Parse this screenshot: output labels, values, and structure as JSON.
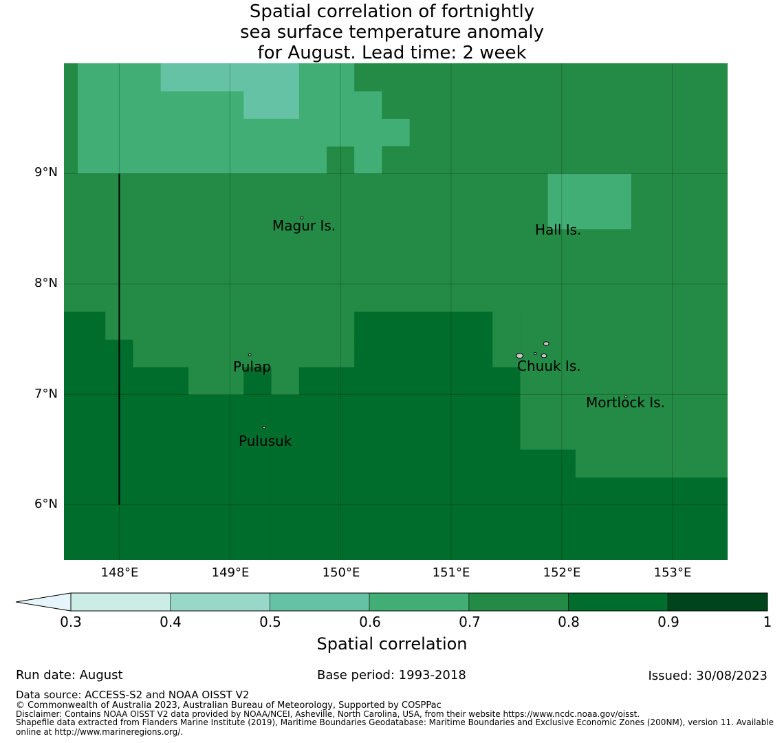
{
  "title": {
    "lines": [
      "Spatial correlation of fortnightly",
      "sea surface temperature anomaly",
      "for August. Lead time: 2 week"
    ]
  },
  "map": {
    "lon_range": [
      147.5,
      153.5
    ],
    "lat_range": [
      5.5,
      10.0
    ],
    "lon_ticks": [
      148,
      149,
      150,
      151,
      152,
      153
    ],
    "lat_ticks": [
      6,
      7,
      8,
      9
    ],
    "lon_tick_labels": [
      "148°E",
      "149°E",
      "150°E",
      "151°E",
      "152°E",
      "153°E"
    ],
    "lat_tick_labels": [
      "6°N",
      "7°N",
      "8°N",
      "9°N"
    ],
    "grid_cell_deg": 0.25,
    "places": [
      {
        "name": "Magur Is.",
        "lon": 149.65,
        "lat": 8.6
      },
      {
        "name": "Hall Is.",
        "lon": 151.98,
        "lat": 8.52
      },
      {
        "name": "Pulap",
        "lon": 149.2,
        "lat": 7.35
      },
      {
        "name": "Chuuk Is.",
        "lon": 151.85,
        "lat": 7.4
      },
      {
        "name": "Mortlock Is.",
        "lon": 152.6,
        "lat": 7.0
      },
      {
        "name": "Pulusuk",
        "lon": 149.3,
        "lat": 6.68
      }
    ],
    "cells": [
      {
        "lon": [
          147.5,
          147.625
        ],
        "lat": [
          9.0,
          10.0
        ],
        "value": 0.75
      },
      {
        "lon": [
          147.625,
          148.375
        ],
        "lat": [
          9.0,
          10.0
        ],
        "value": 0.65
      },
      {
        "lon": [
          148.375,
          149.125
        ],
        "lat": [
          9.0,
          9.75
        ],
        "value": 0.65
      },
      {
        "lon": [
          148.375,
          149.125
        ],
        "lat": [
          9.75,
          10.0
        ],
        "value": 0.55
      },
      {
        "lon": [
          149.125,
          149.625
        ],
        "lat": [
          9.0,
          9.5
        ],
        "value": 0.65
      },
      {
        "lon": [
          149.125,
          149.625
        ],
        "lat": [
          9.5,
          10.0
        ],
        "value": 0.55
      },
      {
        "lon": [
          149.625,
          149.875
        ],
        "lat": [
          9.0,
          10.0
        ],
        "value": 0.65
      },
      {
        "lon": [
          149.875,
          150.125
        ],
        "lat": [
          9.0,
          9.25
        ],
        "value": 0.75
      },
      {
        "lon": [
          149.875,
          150.125
        ],
        "lat": [
          9.25,
          10.0
        ],
        "value": 0.65
      },
      {
        "lon": [
          150.125,
          150.375
        ],
        "lat": [
          9.0,
          9.75
        ],
        "value": 0.65
      },
      {
        "lon": [
          150.375,
          150.625
        ],
        "lat": [
          9.25,
          9.5
        ],
        "value": 0.65
      },
      {
        "lon": [
          150.625,
          150.875
        ],
        "lat": [
          9.0,
          9.75
        ],
        "value": 0.75
      },
      {
        "lon": [
          150.875,
          153.5
        ],
        "lat": [
          9.0,
          10.0
        ],
        "value": 0.75
      },
      {
        "lon": [
          150.125,
          150.875
        ],
        "lat": [
          9.75,
          10.0
        ],
        "value": 0.75
      },
      {
        "lon": [
          150.375,
          150.625
        ],
        "lat": [
          9.0,
          9.25
        ],
        "value": 0.75
      },
      {
        "lon": [
          150.375,
          150.625
        ],
        "lat": [
          9.5,
          9.75
        ],
        "value": 0.75
      },
      {
        "lon": [
          147.5,
          153.5
        ],
        "lat": [
          7.75,
          9.0
        ],
        "value": 0.75
      },
      {
        "lon": [
          151.875,
          152.625
        ],
        "lat": [
          8.5,
          9.0
        ],
        "value": 0.65
      },
      {
        "lon": [
          147.5,
          147.875
        ],
        "lat": [
          5.5,
          7.75
        ],
        "value": 0.85
      },
      {
        "lon": [
          147.875,
          148.125
        ],
        "lat": [
          5.5,
          7.5
        ],
        "value": 0.85
      },
      {
        "lon": [
          147.875,
          148.125
        ],
        "lat": [
          7.5,
          7.75
        ],
        "value": 0.75
      },
      {
        "lon": [
          148.125,
          148.625
        ],
        "lat": [
          5.5,
          7.25
        ],
        "value": 0.85
      },
      {
        "lon": [
          148.125,
          148.625
        ],
        "lat": [
          7.25,
          7.75
        ],
        "value": 0.75
      },
      {
        "lon": [
          148.625,
          149.125
        ],
        "lat": [
          5.5,
          7.0
        ],
        "value": 0.85
      },
      {
        "lon": [
          148.625,
          149.125
        ],
        "lat": [
          7.0,
          7.75
        ],
        "value": 0.75
      },
      {
        "lon": [
          149.125,
          149.375
        ],
        "lat": [
          5.5,
          7.25
        ],
        "value": 0.85
      },
      {
        "lon": [
          149.125,
          149.375
        ],
        "lat": [
          7.25,
          7.75
        ],
        "value": 0.75
      },
      {
        "lon": [
          149.375,
          149.625
        ],
        "lat": [
          5.5,
          7.0
        ],
        "value": 0.85
      },
      {
        "lon": [
          149.375,
          149.625
        ],
        "lat": [
          7.0,
          7.75
        ],
        "value": 0.75
      },
      {
        "lon": [
          149.625,
          150.125
        ],
        "lat": [
          5.5,
          7.25
        ],
        "value": 0.85
      },
      {
        "lon": [
          149.625,
          150.125
        ],
        "lat": [
          7.25,
          7.75
        ],
        "value": 0.75
      },
      {
        "lon": [
          150.125,
          151.375
        ],
        "lat": [
          5.5,
          7.5
        ],
        "value": 0.85
      },
      {
        "lon": [
          150.125,
          151.375
        ],
        "lat": [
          7.5,
          7.75
        ],
        "value": 0.85
      },
      {
        "lon": [
          151.375,
          151.625
        ],
        "lat": [
          5.5,
          7.25
        ],
        "value": 0.85
      },
      {
        "lon": [
          151.375,
          151.625
        ],
        "lat": [
          7.25,
          7.75
        ],
        "value": 0.75
      },
      {
        "lon": [
          151.625,
          153.5
        ],
        "lat": [
          6.5,
          7.75
        ],
        "value": 0.75
      },
      {
        "lon": [
          151.625,
          152.125
        ],
        "lat": [
          5.5,
          6.5
        ],
        "value": 0.85
      },
      {
        "lon": [
          152.125,
          153.5
        ],
        "lat": [
          5.5,
          6.25
        ],
        "value": 0.85
      },
      {
        "lon": [
          152.125,
          153.5
        ],
        "lat": [
          6.25,
          6.5
        ],
        "value": 0.75
      }
    ],
    "line_segment": {
      "lon": 148.0,
      "lat": [
        6.0,
        9.0
      ]
    }
  },
  "colorbar": {
    "ticks": [
      "0.3",
      "0.4",
      "0.5",
      "0.6",
      "0.7",
      "0.8",
      "0.9",
      "1"
    ],
    "bounds": [
      0.3,
      0.4,
      0.5,
      0.6,
      0.7,
      0.8,
      0.9,
      1.0
    ],
    "colors": [
      "#ccece6",
      "#99d8c9",
      "#66c2a4",
      "#41ae76",
      "#238b45",
      "#006d2c",
      "#00441b"
    ],
    "under_color": "#e5f5f9",
    "label": "Spatial correlation"
  },
  "colors": {
    "0.55": "#66c2a4",
    "0.65": "#41ae76",
    "0.75": "#238b45",
    "0.85": "#006d2c"
  },
  "footer": {
    "run_date": "Run date: August",
    "base_period": "Base period: 1993-2018",
    "issued": "Issued: 30/08/2023",
    "data_source": "Data source: ACCESS-S2 and NOAA OISST V2",
    "copyright": "© Commonwealth of Australia 2023, Australian Bureau of Meteorology, Supported by COSPPac",
    "disclaimer": "Disclaimer: Contains NOAA OISST V2 data provided by NOAA/NCEI, Asheville, North Carolina, USA, from their website https://www.ncdc.noaa.gov/oisst.",
    "shapefile_1": "Shapefile data extracted from Flanders Marine Institute (2019), Maritime Boundaries Geodatabase: Maritime Boundaries and Exclusive Economic Zones (200NM), version 11. Available",
    "shapefile_2": "online at http://www.marineregions.org/."
  }
}
